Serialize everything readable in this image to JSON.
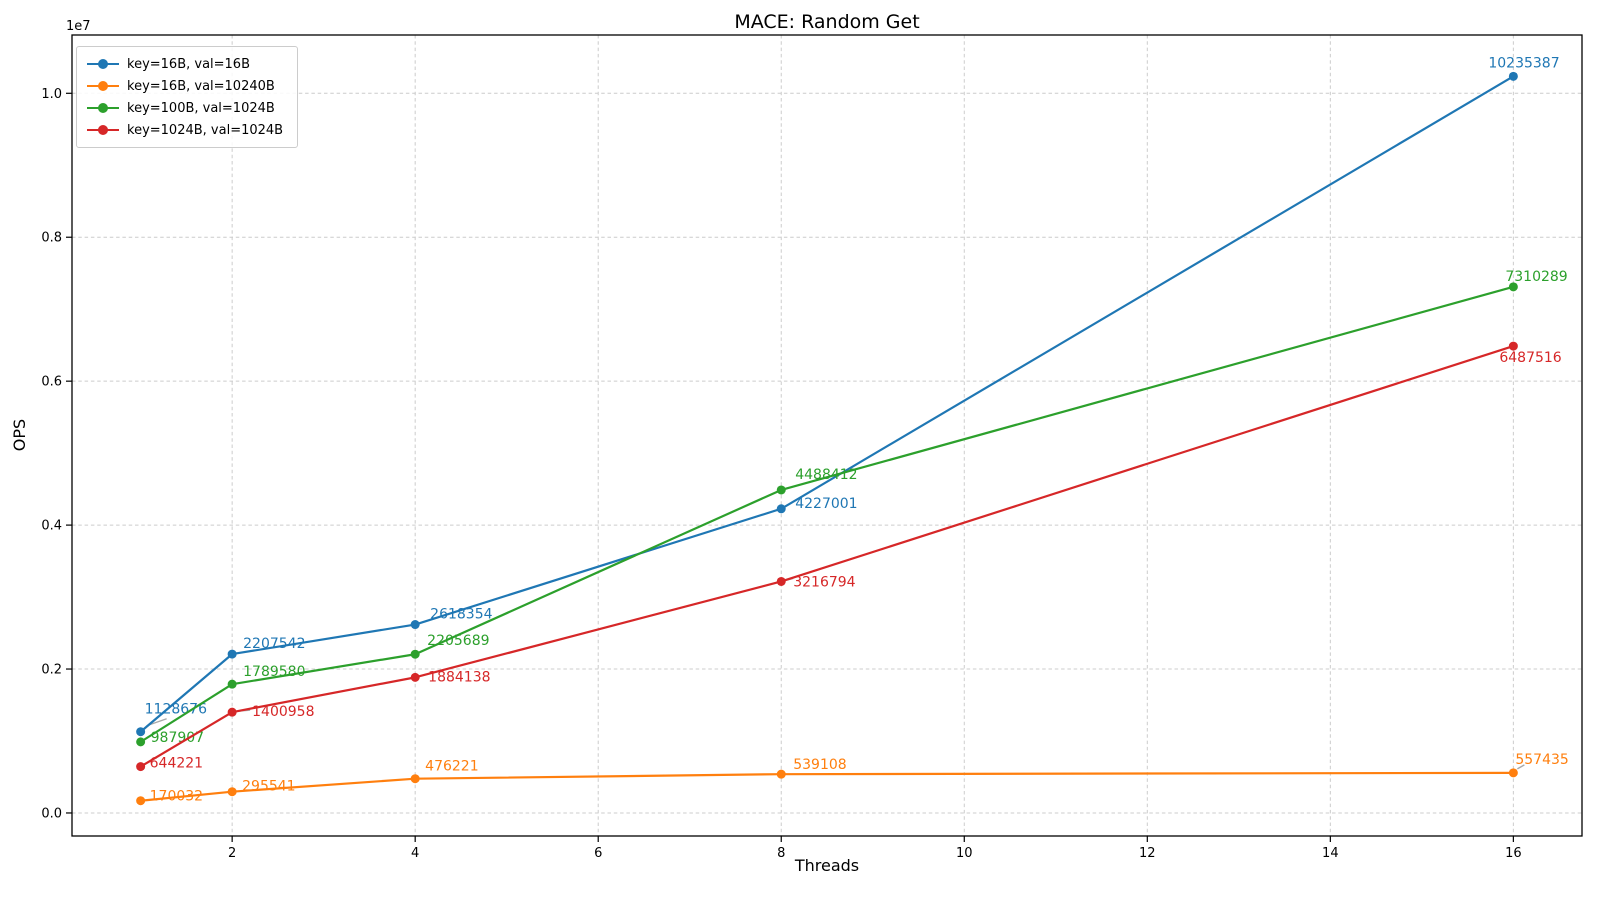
{
  "chart_data": {
    "type": "line",
    "title": "MACE: Random Get",
    "xlabel": "Threads",
    "ylabel": "OPS",
    "y_offset_text": "1e7",
    "grid": true,
    "grid_color": "#cccccc",
    "legend_position": "upper left",
    "x": [
      1,
      2,
      4,
      8,
      16
    ],
    "xlim": [
      0.25,
      16.75
    ],
    "ylim": [
      -320000,
      10810000
    ],
    "x_ticks": [
      2,
      4,
      6,
      8,
      10,
      12,
      14,
      16
    ],
    "x_tick_labels": [
      "2",
      "4",
      "6",
      "8",
      "10",
      "12",
      "14",
      "16"
    ],
    "y_ticks": [
      0,
      2000000,
      4000000,
      6000000,
      8000000,
      10000000
    ],
    "y_tick_labels": [
      "0.0",
      "0.2",
      "0.4",
      "0.6",
      "0.8",
      "1.0"
    ],
    "series": [
      {
        "name": "key=16B, val=16B",
        "color": "#1f77b4",
        "values": [
          1128676,
          2207542,
          2618354,
          4227001,
          10235387
        ],
        "point_labels": [
          "1128676",
          "2207542",
          "2618354",
          "4227001",
          "10235387"
        ],
        "label_offsets": [
          [
            4,
            -18
          ],
          [
            11,
            -6
          ],
          [
            15,
            -6
          ],
          [
            14,
            -1
          ],
          [
            -25,
            -9
          ]
        ],
        "leaders": [
          [
            6,
            -6,
            26,
            -13
          ],
          null,
          null,
          null,
          null
        ]
      },
      {
        "name": "key=16B, val=10240B",
        "color": "#ff7f0e",
        "values": [
          170032,
          295541,
          476221,
          539108,
          557435
        ],
        "point_labels": [
          "170032",
          "295541",
          "476221",
          "539108",
          "557435"
        ],
        "label_offsets": [
          [
            9,
            0
          ],
          [
            10,
            -1
          ],
          [
            10,
            -8
          ],
          [
            12,
            -5
          ],
          [
            2,
            -9
          ]
        ],
        "leaders": [
          null,
          null,
          null,
          null,
          [
            4,
            -4,
            11,
            -8
          ]
        ]
      },
      {
        "name": "key=100B, val=1024B",
        "color": "#2ca02c",
        "values": [
          987907,
          1789580,
          2205689,
          4488412,
          7310289
        ],
        "point_labels": [
          "987907",
          "1789580",
          "2205689",
          "4488412",
          "7310289"
        ],
        "label_offsets": [
          [
            10,
            0
          ],
          [
            11,
            -8
          ],
          [
            12,
            -9
          ],
          [
            14,
            -11
          ],
          [
            -8,
            -6
          ]
        ],
        "leaders": [
          null,
          null,
          null,
          null,
          null
        ]
      },
      {
        "name": "key=1024B, val=1024B",
        "color": "#d62728",
        "values": [
          644221,
          1400958,
          1884138,
          3216794,
          6487516
        ],
        "point_labels": [
          "644221",
          "1400958",
          "1884138",
          "3216794",
          "6487516"
        ],
        "label_offsets": [
          [
            9,
            1
          ],
          [
            20,
            4
          ],
          [
            13,
            4
          ],
          [
            12,
            5
          ],
          [
            -14,
            16
          ]
        ],
        "leaders": [
          null,
          [
            5,
            -1,
            18,
            -2
          ],
          null,
          [
            4,
            -1,
            12,
            -3
          ],
          null
        ]
      }
    ]
  }
}
